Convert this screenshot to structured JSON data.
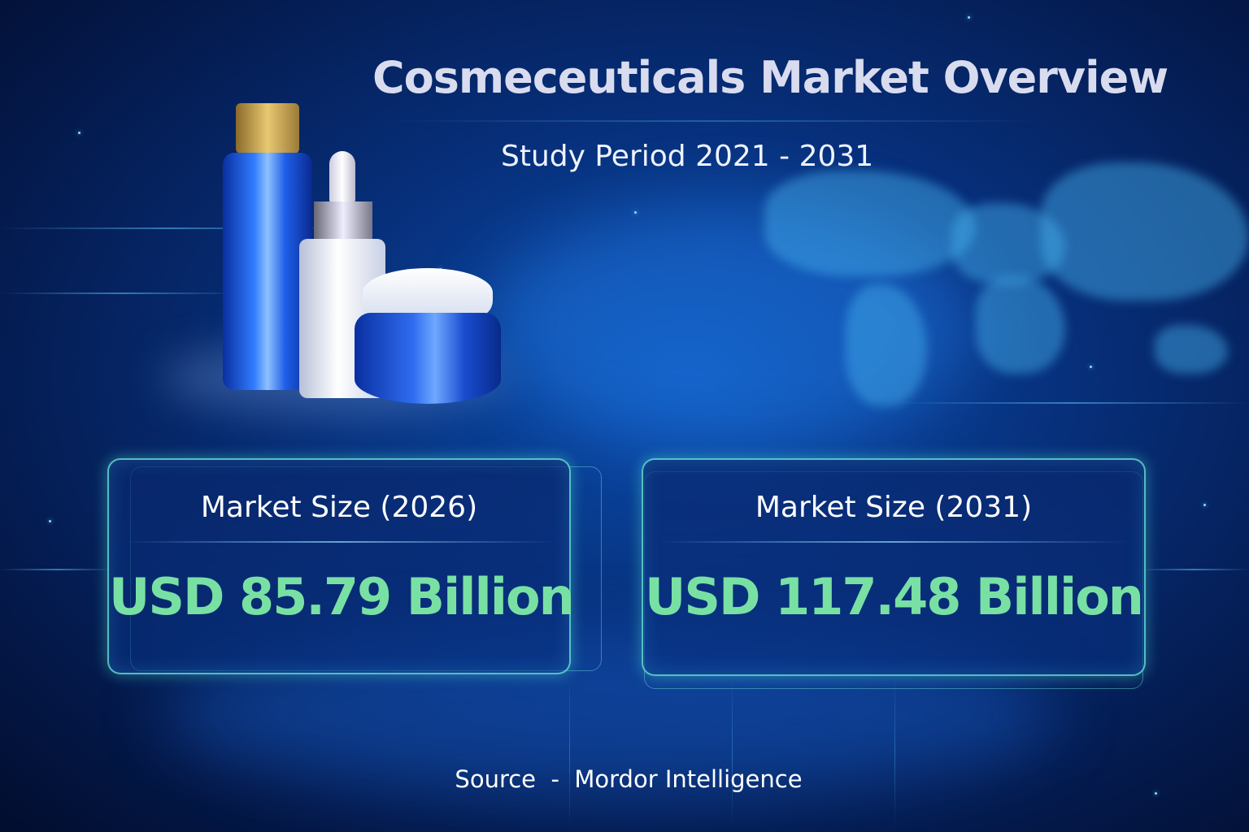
{
  "header": {
    "title": "Cosmeceuticals Market Overview",
    "subtitle": "Study Period 2021 - 2031"
  },
  "cards": [
    {
      "label": "Market Size (2026)",
      "value": "USD 85.79 Billion"
    },
    {
      "label": "Market Size (2031)",
      "value": "USD 117.48 Billion"
    }
  ],
  "footer": {
    "source": "Source  -  Mordor Intelligence"
  },
  "colors": {
    "background": "#062a72",
    "value_text": "#79e0a4",
    "card_border": "#6ef0dc",
    "title": "#d9dcef"
  }
}
